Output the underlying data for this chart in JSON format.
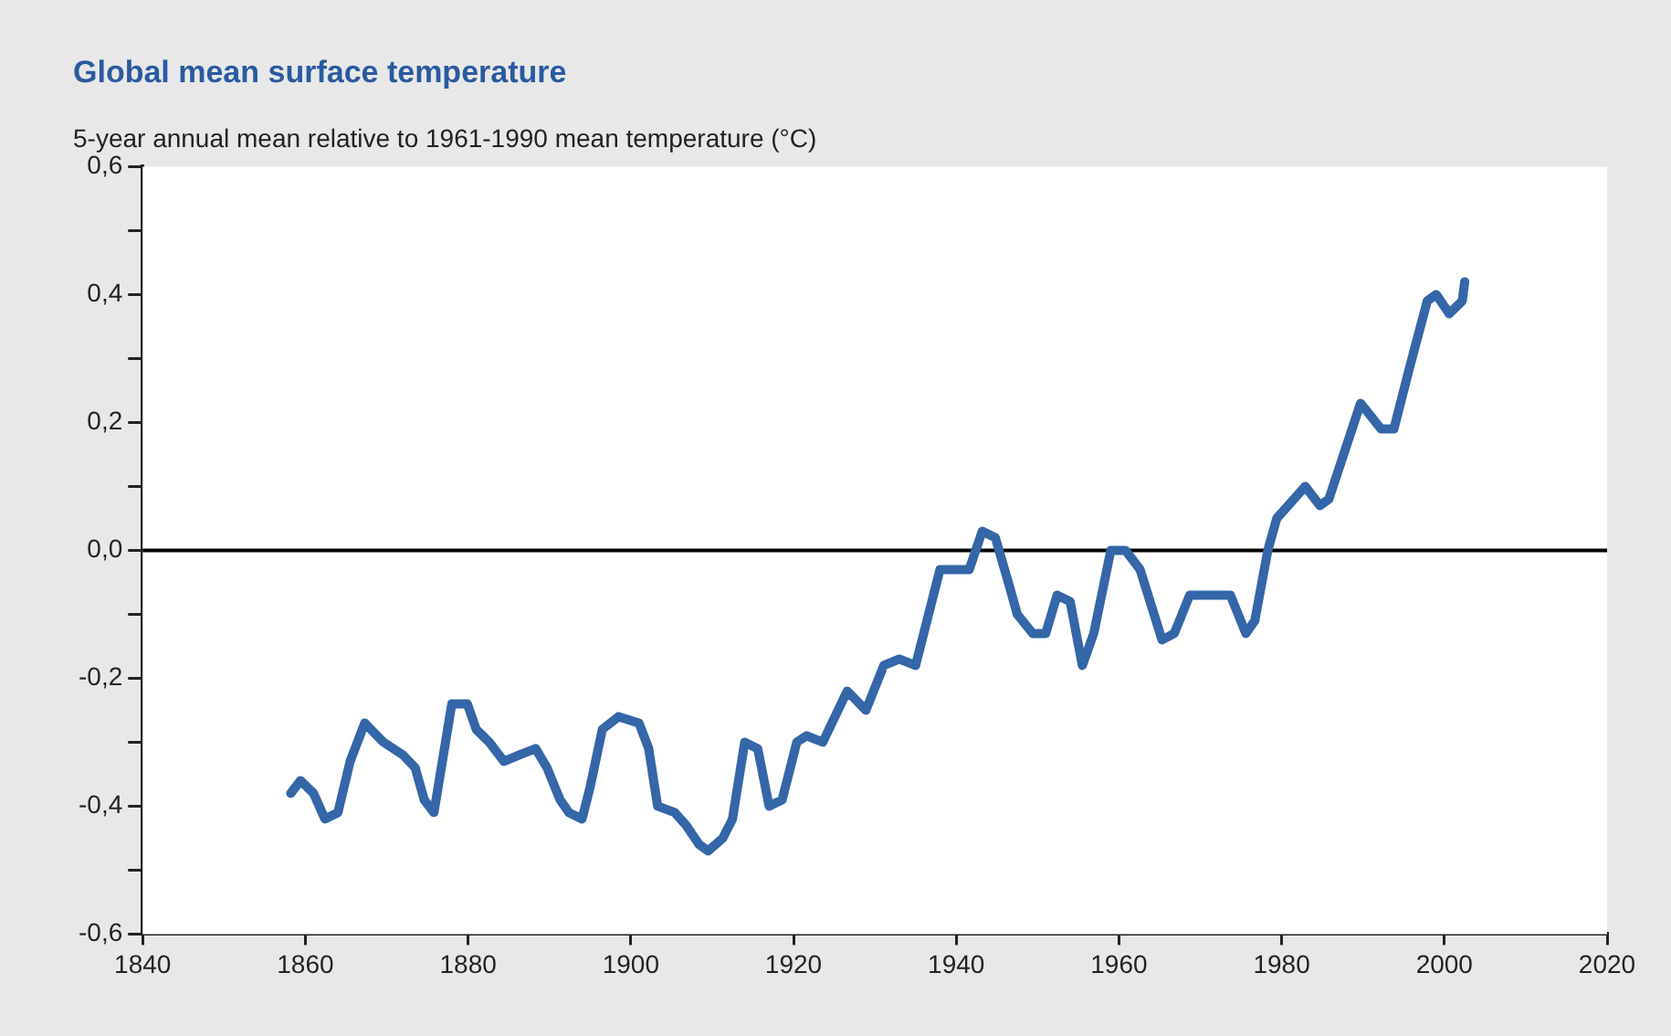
{
  "chart_data": {
    "type": "line",
    "title": "Global mean surface temperature",
    "subtitle": "5-year annual mean relative to 1961-1990 mean temperature (°C)",
    "x": [
      1858.2,
      1859.4,
      1861,
      1862.4,
      1864,
      1865.5,
      1867.3,
      1869.6,
      1872,
      1873.5,
      1874.6,
      1875.8,
      1878,
      1879.9,
      1881,
      1882.6,
      1884.4,
      1886.3,
      1888.3,
      1889.7,
      1891.3,
      1892.4,
      1894,
      1895,
      1896.5,
      1898.5,
      1901,
      1902.2,
      1903.3,
      1905.4,
      1906.8,
      1908.4,
      1909.5,
      1911.3,
      1912.5,
      1914,
      1915.6,
      1917,
      1918.6,
      1920.4,
      1921.6,
      1923.6,
      1926.6,
      1928.9,
      1931.1,
      1933,
      1935,
      1936.4,
      1938,
      1939.5,
      1941.6,
      1943.2,
      1944.8,
      1946.4,
      1947.5,
      1949.4,
      1951,
      1952.4,
      1954,
      1955.5,
      1956.9,
      1959,
      1960.8,
      1962.6,
      1965.3,
      1966.8,
      1968.7,
      1969.9,
      1971.5,
      1973.7,
      1975.6,
      1976.7,
      1978.3,
      1979.4,
      1982.9,
      1984.7,
      1985.8,
      1989.7,
      1992.2,
      1993.8,
      1995.6,
      1997.9,
      1999,
      2000.6,
      2002.2,
      2002.5
    ],
    "series": [
      {
        "color": "#3466a8",
        "values": [
          -0.38,
          -0.36,
          -0.38,
          -0.42,
          -0.41,
          -0.33,
          -0.27,
          -0.3,
          -0.32,
          -0.34,
          -0.39,
          -0.41,
          -0.24,
          -0.24,
          -0.28,
          -0.3,
          -0.33,
          -0.32,
          -0.31,
          -0.34,
          -0.39,
          -0.41,
          -0.42,
          -0.37,
          -0.28,
          -0.26,
          -0.27,
          -0.31,
          -0.4,
          -0.41,
          -0.43,
          -0.46,
          -0.47,
          -0.45,
          -0.42,
          -0.3,
          -0.31,
          -0.4,
          -0.39,
          -0.3,
          -0.29,
          -0.3,
          -0.22,
          -0.25,
          -0.18,
          -0.17,
          -0.18,
          -0.11,
          -0.03,
          -0.03,
          -0.03,
          0.03,
          0.02,
          -0.05,
          -0.1,
          -0.13,
          -0.13,
          -0.07,
          -0.08,
          -0.18,
          -0.13,
          0,
          0,
          -0.03,
          -0.14,
          -0.13,
          -0.07,
          -0.07,
          -0.07,
          -0.07,
          -0.13,
          -0.11,
          0,
          0.05,
          0.1,
          0.07,
          0.08,
          0.23,
          0.19,
          0.19,
          0.28,
          0.39,
          0.4,
          0.37,
          0.39,
          0.42
        ]
      }
    ],
    "xlim": [
      1840,
      2020
    ],
    "xticks": [
      1840,
      1860,
      1880,
      1900,
      1920,
      1940,
      1960,
      1980,
      2000,
      2020
    ],
    "ylim": [
      -0.6,
      0.6
    ],
    "yticks": [
      {
        "value": -0.6,
        "label": "-0,6"
      },
      {
        "value": -0.5,
        "label": null
      },
      {
        "value": -0.4,
        "label": "-0,4"
      },
      {
        "value": -0.3,
        "label": null
      },
      {
        "value": -0.2,
        "label": "-0,2"
      },
      {
        "value": -0.1,
        "label": null
      },
      {
        "value": 0,
        "label": "0,0"
      },
      {
        "value": 0.1,
        "label": null
      },
      {
        "value": 0.2,
        "label": "0,2"
      },
      {
        "value": 0.3,
        "label": null
      },
      {
        "value": 0.4,
        "label": "0,4"
      },
      {
        "value": 0.5,
        "label": null
      },
      {
        "value": 0.6,
        "label": "0,6"
      }
    ],
    "ref_lines": [
      {
        "axis": "y",
        "value": 0,
        "color": "#000000"
      }
    ],
    "grid": false,
    "legend": false,
    "marker": "none",
    "line_style": "solid"
  }
}
